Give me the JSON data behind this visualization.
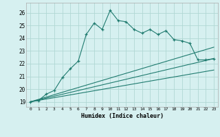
{
  "xlabel": "Humidex (Indice chaleur)",
  "bg_color": "#d6f0f0",
  "grid_color": "#b0d8d4",
  "line_color": "#1e7a6e",
  "xlim": [
    -0.5,
    23.5
  ],
  "ylim": [
    18.6,
    26.8
  ],
  "yticks": [
    19,
    20,
    21,
    22,
    23,
    24,
    25,
    26
  ],
  "xticks": [
    0,
    1,
    2,
    3,
    4,
    5,
    6,
    7,
    8,
    9,
    10,
    11,
    12,
    13,
    14,
    15,
    16,
    17,
    18,
    19,
    20,
    21,
    22,
    23
  ],
  "series1_x": [
    0,
    1,
    2,
    3,
    4,
    5,
    6,
    7,
    8,
    9,
    10,
    11,
    12,
    13,
    14,
    15,
    16,
    17,
    18,
    19,
    20,
    21,
    22,
    23
  ],
  "series1_y": [
    19.0,
    19.1,
    19.6,
    19.9,
    20.9,
    21.6,
    22.2,
    24.3,
    25.2,
    24.7,
    26.2,
    25.4,
    25.3,
    24.7,
    24.4,
    24.7,
    24.3,
    24.6,
    23.9,
    23.8,
    23.6,
    22.3,
    22.3,
    22.4
  ],
  "series2_x": [
    0,
    23
  ],
  "series2_y": [
    19.0,
    22.4
  ],
  "series3_x": [
    0,
    23
  ],
  "series3_y": [
    19.0,
    23.3
  ],
  "series4_x": [
    0,
    23
  ],
  "series4_y": [
    19.0,
    21.5
  ]
}
